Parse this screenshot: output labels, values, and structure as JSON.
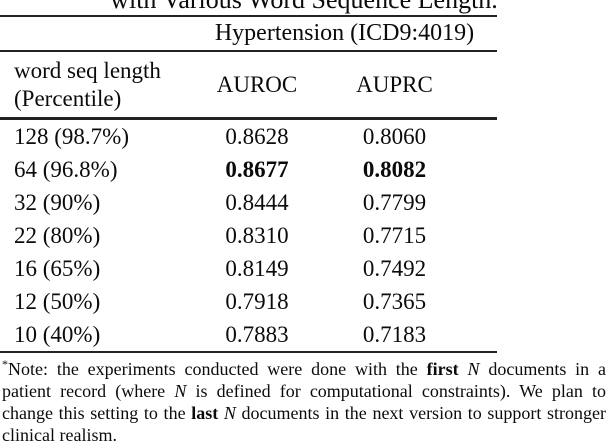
{
  "caption": "with Various Word Sequence Length.",
  "table": {
    "group_header": "Hypertension (ICD9:4019)",
    "col1_header_line1": "word seq length",
    "col1_header_line2": "(Percentile)",
    "columns": {
      "auroc": "AUROC",
      "auprc": "AUPRC"
    },
    "rows": [
      {
        "label": "128 (98.7%)",
        "auroc": "0.8628",
        "auprc": "0.8060",
        "bold": false
      },
      {
        "label": "64 (96.8%)",
        "auroc": "0.8677",
        "auprc": "0.8082",
        "bold": true
      },
      {
        "label": "32 (90%)",
        "auroc": "0.8444",
        "auprc": "0.7799",
        "bold": false
      },
      {
        "label": "22 (80%)",
        "auroc": "0.8310",
        "auprc": "0.7715",
        "bold": false
      },
      {
        "label": "16 (65%)",
        "auroc": "0.8149",
        "auprc": "0.7492",
        "bold": false
      },
      {
        "label": "12 (50%)",
        "auroc": "0.7918",
        "auprc": "0.7365",
        "bold": false
      },
      {
        "label": "10 (40%)",
        "auroc": "0.7883",
        "auprc": "0.7183",
        "bold": false
      }
    ]
  },
  "footnote": {
    "marker": "*",
    "segments": [
      {
        "text": "Note: the experiments conducted were done with the ",
        "style": "normal"
      },
      {
        "text": "first",
        "style": "bold"
      },
      {
        "text": " ",
        "style": "normal"
      },
      {
        "text": "N",
        "style": "italic"
      },
      {
        "text": " documents in a patient record (where ",
        "style": "normal"
      },
      {
        "text": "N",
        "style": "italic"
      },
      {
        "text": " is defined for computational constraints). We plan to change this setting to the ",
        "style": "normal"
      },
      {
        "text": "last",
        "style": "bold"
      },
      {
        "text": " ",
        "style": "normal"
      },
      {
        "text": "N",
        "style": "italic"
      },
      {
        "text": " documents in the next version to support stronger clinical realism.",
        "style": "normal"
      }
    ]
  }
}
